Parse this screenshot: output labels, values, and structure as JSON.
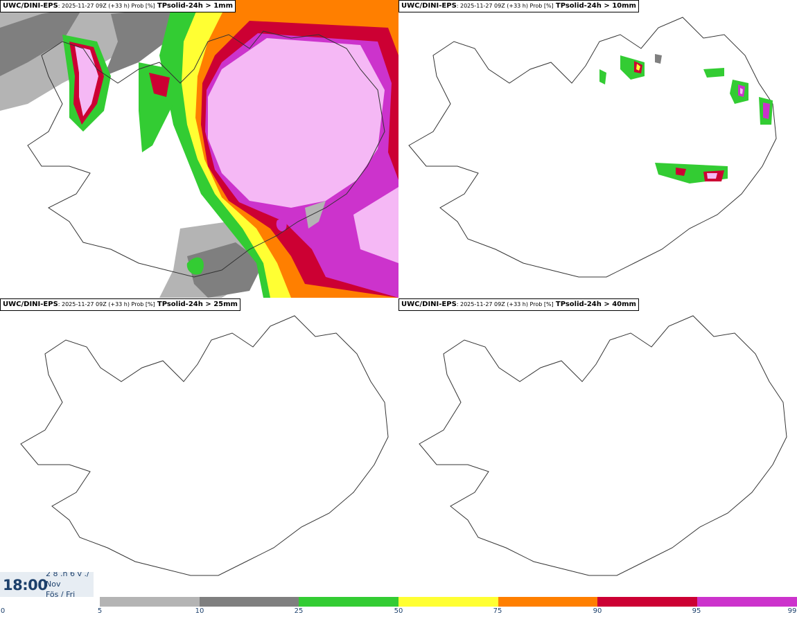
{
  "panels": [
    {
      "model": "UWC/DINI-EPS",
      "meta": ": 2025-11-27 09Z (+33 h) Prob [%]",
      "param": "TPsolid-24h > 1mm"
    },
    {
      "model": "UWC/DINI-EPS",
      "meta": ": 2025-11-27 09Z (+33 h) Prob [%]",
      "param": "TPsolid-24h > 10mm"
    },
    {
      "model": "UWC/DINI-EPS",
      "meta": ": 2025-11-27 09Z (+33 h) Prob [%]",
      "param": "TPsolid-24h > 25mm"
    },
    {
      "model": "UWC/DINI-EPS",
      "meta": ": 2025-11-27 09Z (+33 h) Prob [%]",
      "param": "TPsolid-24h > 40mm"
    }
  ],
  "valid_time": {
    "time": "18:00",
    "date_line": "2 8 .n 6 v ./",
    "month": "Nov",
    "weekday": "Fös / Fri"
  },
  "legend": {
    "ticks": [
      "0",
      "5",
      "10",
      "25",
      "50",
      "75",
      "90",
      "95",
      "99"
    ],
    "colors": {
      "5-10": "#b4b4b4",
      "10-25": "#7f7f7f",
      "25-50": "#33cc33",
      "50-75": "#ffff33",
      "75-90": "#ff7f00",
      "90-95": "#cc0033",
      "95-99": "#cc33cc",
      "99+": "#f5b8f5"
    }
  }
}
